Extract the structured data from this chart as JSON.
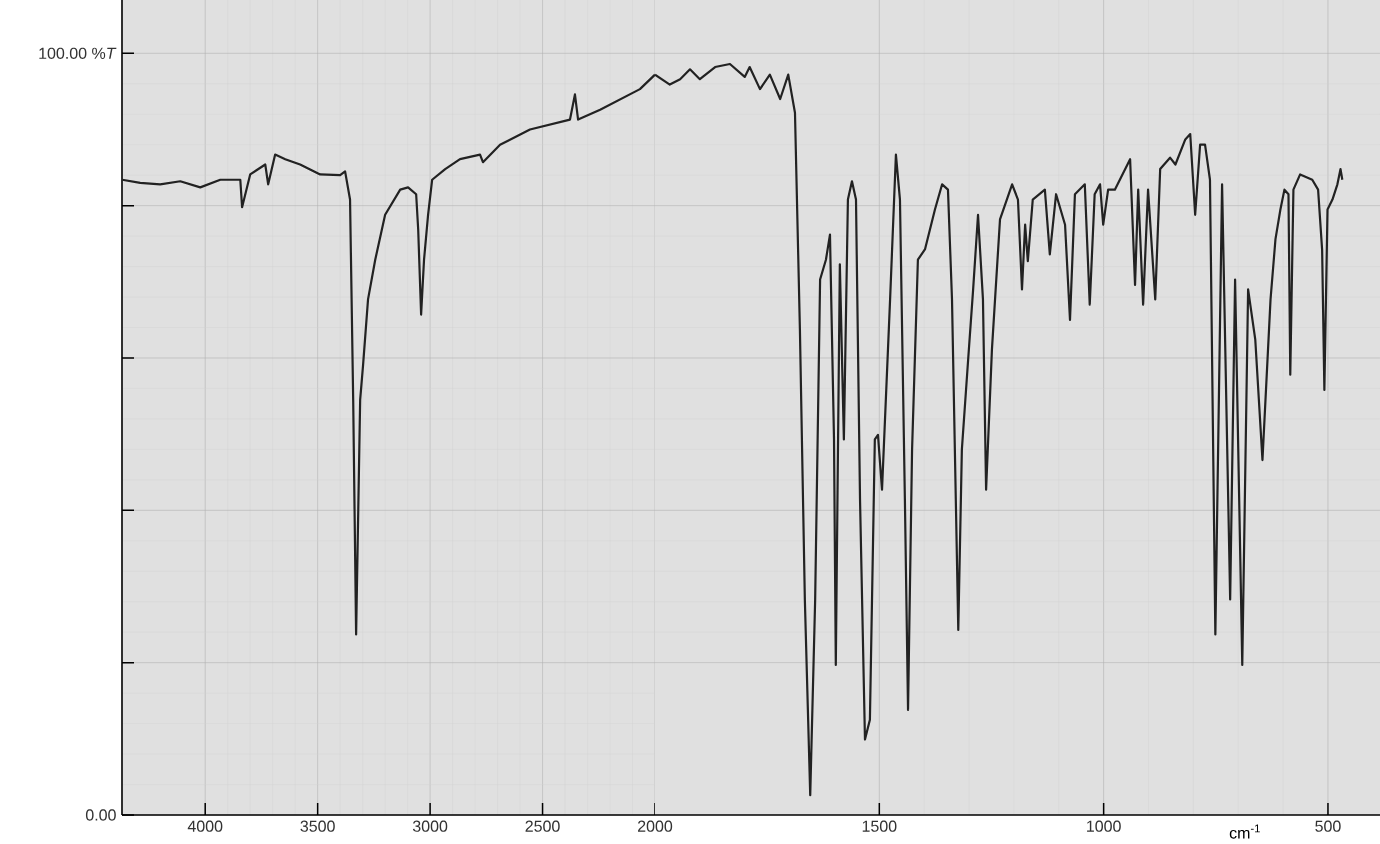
{
  "chart_data": [
    {
      "type": "line",
      "color": "#222222",
      "grid": true,
      "xlim": [
        4370,
        2000
      ],
      "ylim": [
        0,
        107
      ],
      "xticks": [
        4000,
        3500,
        3000,
        2500,
        2000
      ],
      "yticks": [
        {
          "value": 0,
          "label": "0.00"
        },
        {
          "value": 20,
          "label": null
        },
        {
          "value": 40,
          "label": null
        },
        {
          "value": 60,
          "label": null
        },
        {
          "value": 80,
          "label": null
        },
        {
          "value": 100,
          "label": "100.00 %*T*"
        }
      ],
      "x": [
        4369,
        4289,
        4200,
        4111,
        4022,
        3933,
        3844,
        3836,
        3800,
        3733,
        3720,
        3689,
        3644,
        3578,
        3489,
        3400,
        3378,
        3356,
        3342,
        3329,
        3311,
        3298,
        3276,
        3244,
        3200,
        3133,
        3098,
        3062,
        3053,
        3040,
        3027,
        3009,
        2991,
        2933,
        2867,
        2778,
        2765,
        2689,
        2556,
        2378,
        2356,
        2342,
        2244,
        2067,
        2000
      ],
      "values": [
        83.4,
        83.0,
        82.8,
        83.2,
        82.4,
        83.4,
        83.4,
        79.8,
        84.1,
        85.4,
        82.8,
        86.7,
        86.1,
        85.4,
        84.1,
        84.0,
        84.5,
        80.8,
        54.5,
        23.7,
        54.5,
        59.1,
        67.7,
        72.9,
        78.8,
        82.1,
        82.4,
        81.5,
        76.9,
        65.7,
        72.9,
        78.8,
        83.4,
        84.8,
        86.1,
        86.7,
        85.7,
        88.0,
        90.0,
        91.3,
        94.6,
        91.3,
        92.6,
        95.3,
        97.2
      ]
    },
    {
      "type": "line",
      "xlabel": "cm$^{-1}$",
      "color": "#222222",
      "grid": true,
      "tick_labels": "x",
      "xlim": [
        2000,
        384
      ],
      "ylim": [
        0,
        107
      ],
      "xticks": [
        1500,
        1000,
        500
      ],
      "yticks": [
        20,
        40,
        60,
        80,
        100
      ],
      "x": [
        2000,
        1967,
        1944,
        1922,
        1900,
        1866,
        1833,
        1800,
        1789,
        1766,
        1744,
        1721,
        1703,
        1688,
        1677,
        1666,
        1654,
        1643,
        1632,
        1619,
        1610,
        1601,
        1597,
        1588,
        1579,
        1570,
        1561,
        1552,
        1543,
        1532,
        1521,
        1510,
        1503,
        1494,
        1476,
        1463,
        1454,
        1443,
        1436,
        1427,
        1414,
        1398,
        1376,
        1360,
        1347,
        1338,
        1324,
        1316,
        1302,
        1291,
        1280,
        1269,
        1262,
        1249,
        1231,
        1204,
        1191,
        1182,
        1175,
        1169,
        1158,
        1131,
        1120,
        1106,
        1086,
        1075,
        1064,
        1042,
        1031,
        1020,
        1008,
        1001,
        990,
        975,
        941,
        930,
        923,
        912,
        901,
        885,
        874,
        852,
        840,
        818,
        807,
        796,
        785,
        774,
        763,
        751,
        736,
        718,
        707,
        691,
        678,
        662,
        646,
        628,
        617,
        606,
        597,
        588,
        584,
        577,
        562,
        535,
        522,
        513,
        508,
        501,
        490,
        479,
        472,
        468
      ],
      "values": [
        97.2,
        95.9,
        96.6,
        97.9,
        96.6,
        98.2,
        98.6,
        96.9,
        98.2,
        95.3,
        97.2,
        94.0,
        97.2,
        92.2,
        63.7,
        28.3,
        2.6,
        28.3,
        70.3,
        72.9,
        76.2,
        49.3,
        19.7,
        72.3,
        49.3,
        80.8,
        83.2,
        80.8,
        41.4,
        9.9,
        12.5,
        49.3,
        49.9,
        42.7,
        67.7,
        86.7,
        80.8,
        41.4,
        13.8,
        48.0,
        72.9,
        74.3,
        79.5,
        82.8,
        82.1,
        67.7,
        24.3,
        48.0,
        59.8,
        68.9,
        78.8,
        67.7,
        42.7,
        61.1,
        78.2,
        82.8,
        80.8,
        69.0,
        77.5,
        72.7,
        80.8,
        82.1,
        73.6,
        81.5,
        77.5,
        65.0,
        81.5,
        82.8,
        67.0,
        81.5,
        82.8,
        77.5,
        82.1,
        82.1,
        86.1,
        69.6,
        82.1,
        67.0,
        82.1,
        67.7,
        84.8,
        86.3,
        85.4,
        88.7,
        89.4,
        78.8,
        88.0,
        88.0,
        83.4,
        23.7,
        82.8,
        28.3,
        70.3,
        19.7,
        69.0,
        62.4,
        46.6,
        67.7,
        75.6,
        79.5,
        82.1,
        81.5,
        57.8,
        82.1,
        84.1,
        83.4,
        82.1,
        74.2,
        55.8,
        79.5,
        80.8,
        82.8,
        84.8,
        83.4
      ]
    }
  ]
}
